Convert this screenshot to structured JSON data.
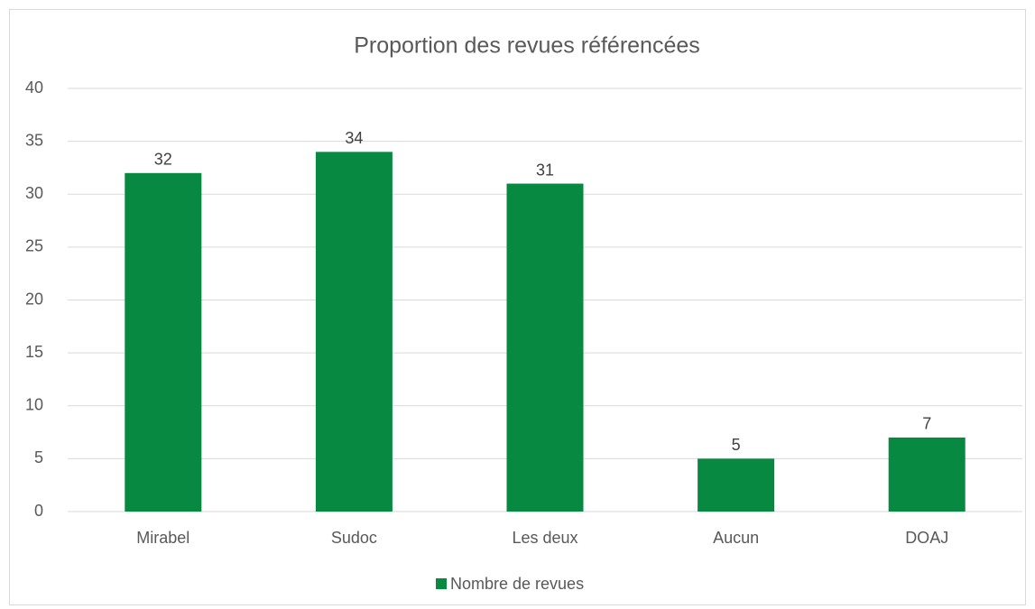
{
  "chart_data": {
    "type": "bar",
    "title": "Proportion des revues référencées",
    "categories": [
      "Mirabel",
      "Sudoc",
      "Les deux",
      "Aucun",
      "DOAJ"
    ],
    "series": [
      {
        "name": "Nombre de revues",
        "color": "#078942",
        "values": [
          32,
          34,
          31,
          5,
          7
        ]
      }
    ],
    "ylim": [
      0,
      40
    ],
    "yticks": [
      0,
      5,
      10,
      15,
      20,
      25,
      30,
      35,
      40
    ],
    "grid": true,
    "legend": "bottom"
  }
}
